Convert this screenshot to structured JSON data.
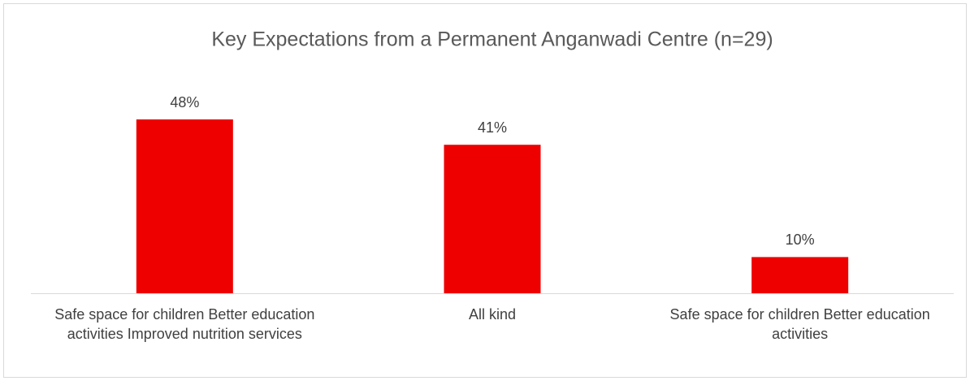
{
  "chart_data": {
    "type": "bar",
    "title": "Key Expectations from a Permanent Anganwadi Centre (n=29)",
    "categories": [
      "Safe space for children Better education activities Improved nutrition services",
      "All kind",
      "Safe space for children Better education activities"
    ],
    "values": [
      48,
      41,
      10
    ],
    "value_labels": [
      "48%",
      "41%",
      "10%"
    ],
    "color": "#ee0000"
  }
}
